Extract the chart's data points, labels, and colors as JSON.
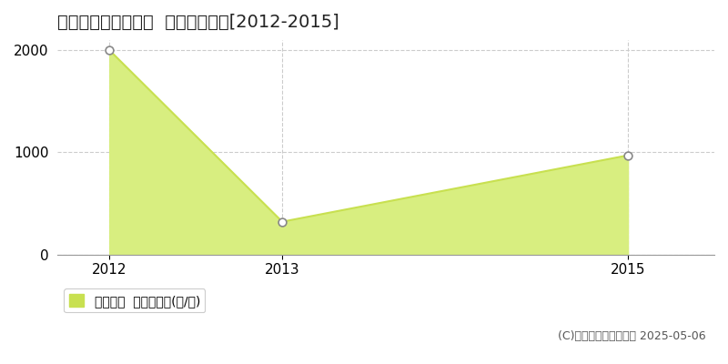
{
  "title": "常呂郡佐呂間町若佐  農地価格推移[2012-2015]",
  "x_values": [
    2012,
    2013,
    2015
  ],
  "y_values": [
    2000,
    320,
    970
  ],
  "line_color": "#c8e050",
  "fill_color": "#d8ee80",
  "marker_color": "#c8e050",
  "marker_edge_color": "#888888",
  "xlim": [
    2011.7,
    2015.5
  ],
  "ylim": [
    0,
    2100
  ],
  "yticks": [
    0,
    1000,
    2000
  ],
  "xticks": [
    2012,
    2013,
    2015
  ],
  "grid_color": "#cccccc",
  "background_color": "#ffffff",
  "legend_label": "農地価格  平均坪単価(円/坪)",
  "copyright_text": "(C)土地価格ドットコム 2025-05-06",
  "title_fontsize": 14,
  "tick_fontsize": 11,
  "legend_fontsize": 10,
  "copyright_fontsize": 9
}
